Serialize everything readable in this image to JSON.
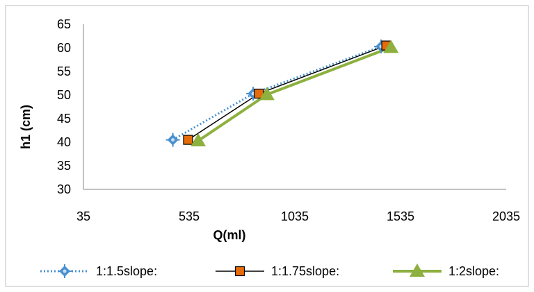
{
  "chart_data": {
    "type": "line",
    "title": "",
    "xlabel": "Q(ml)",
    "ylabel": "h1 (cm)",
    "xlim": [
      35,
      2035
    ],
    "ylim": [
      30,
      65
    ],
    "x_ticks": [
      "35",
      "535",
      "1035",
      "1535",
      "2035"
    ],
    "y_ticks": [
      "30",
      "35",
      "40",
      "45",
      "50",
      "55",
      "60",
      "65"
    ],
    "grid": false,
    "legend_position": "bottom",
    "series": [
      {
        "name": "1:1.5slope:",
        "color": "#4a90cf",
        "line_style": "dotted",
        "marker": "diamond-cross",
        "points": [
          [
            458,
            40.5
          ],
          [
            838,
            50.3
          ],
          [
            1443,
            60.3
          ]
        ]
      },
      {
        "name": "1:1.75slope:",
        "color": "#000000",
        "marker_color": "#e46c0a",
        "line_style": "solid",
        "marker": "square",
        "points": [
          [
            530,
            40.5
          ],
          [
            865,
            50.3
          ],
          [
            1468,
            60.5
          ]
        ]
      },
      {
        "name": "1:2slope:",
        "color": "#8db03f",
        "line_style": "solid",
        "marker": "triangle",
        "points": [
          [
            578,
            40.3
          ],
          [
            903,
            50.1
          ],
          [
            1490,
            60.1
          ]
        ]
      }
    ]
  }
}
